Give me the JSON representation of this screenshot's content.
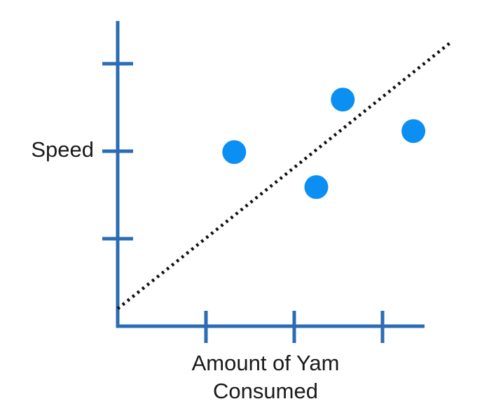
{
  "chart_data": {
    "type": "scatter",
    "title": "",
    "xlabel_lines": [
      "Amount of Yam",
      "Consumed"
    ],
    "ylabel": "Speed",
    "xlim": [
      0,
      3.5
    ],
    "ylim": [
      0,
      3.5
    ],
    "x_ticks": [
      1,
      2,
      3
    ],
    "y_ticks": [
      1,
      2,
      3
    ],
    "tick_labels_shown": false,
    "grid": false,
    "legend": "none",
    "points": [
      {
        "x": 1.32,
        "y": 1.99
      },
      {
        "x": 2.25,
        "y": 1.59
      },
      {
        "x": 2.55,
        "y": 2.59
      },
      {
        "x": 3.35,
        "y": 2.23
      }
    ],
    "trendline": {
      "style": "dotted",
      "x": [
        0,
        3.78
      ],
      "y": [
        0.2,
        3.25
      ]
    },
    "colors": {
      "axes": "#2a6db5",
      "points": "#0b8ff2",
      "trendline": "#111111"
    }
  }
}
